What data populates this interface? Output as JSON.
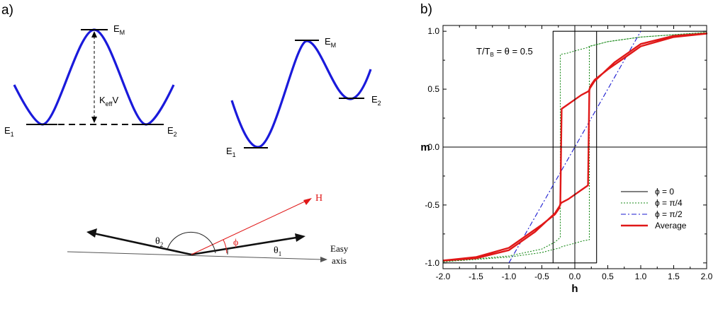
{
  "panel_a": {
    "label": "a)",
    "well_sym": {
      "top": "E",
      "top_sub": "M",
      "left": "E",
      "left_sub": "1",
      "right": "E",
      "right_sub": "2",
      "barrier": "K",
      "barrier_sub": "eff",
      "barrier_tail": "V"
    },
    "well_asym": {
      "top": "E",
      "top_sub": "M",
      "left": "E",
      "left_sub": "1",
      "right": "E",
      "right_sub": "2"
    },
    "angles": {
      "h": "H",
      "phi": "ϕ",
      "theta1": "θ",
      "theta1_sub": "1",
      "theta2": "θ",
      "theta2_sub": "2",
      "easy1": "Easy",
      "easy2": "axis"
    },
    "colors": {
      "well": "#1a1adb",
      "field": "#e01818",
      "arrow": "#111111"
    }
  },
  "panel_b": {
    "label": "b)",
    "annotation": "T/T",
    "annotation_sub": "B",
    "annotation_tail": " = θ  = 0.5"
  },
  "chart_data": {
    "type": "line",
    "xlabel": "h",
    "ylabel": "m",
    "xlim": [
      -2.0,
      2.0
    ],
    "ylim": [
      -1.05,
      1.05
    ],
    "xticks": [
      "-2.0",
      "-1.5",
      "-1.0",
      "-0.5",
      "0.0",
      "0.5",
      "1.0",
      "1.5",
      "2.0"
    ],
    "yticks": [
      "-1.0",
      "-0.5",
      "0.0",
      "0.5",
      "1.0"
    ],
    "legend_position": "bottom-right",
    "series": [
      {
        "name": "ϕ = 0",
        "color": "#000000",
        "style": "solid",
        "x": [
          -2.0,
          0.33,
          0.33,
          2.0,
          2.0,
          -0.33,
          -0.33,
          -2.0
        ],
        "y": [
          -1.0,
          -1.0,
          1.0,
          1.0,
          1.0,
          1.0,
          -1.0,
          -1.0
        ]
      },
      {
        "name": "ϕ = π/4",
        "color": "#1a8a1a",
        "style": "dotted",
        "x": [
          -2.0,
          -1.0,
          -0.5,
          -0.3,
          -0.22,
          -0.22,
          -0.12,
          0.0,
          0.2,
          0.22,
          0.22,
          0.3,
          0.5,
          1.0,
          2.0,
          2.0,
          1.0,
          0.5,
          0.3,
          0.22,
          0.22,
          0.12,
          0.0,
          -0.2,
          -0.22,
          -0.22,
          -0.3,
          -0.5,
          -1.0,
          -2.0
        ],
        "y": [
          -0.99,
          -0.94,
          -0.88,
          -0.82,
          -0.78,
          0.8,
          0.81,
          0.83,
          0.86,
          0.87,
          0.87,
          0.88,
          0.91,
          0.95,
          0.99,
          0.99,
          0.95,
          0.91,
          0.88,
          0.87,
          -0.8,
          -0.81,
          -0.83,
          -0.86,
          -0.87,
          -0.87,
          -0.88,
          -0.91,
          -0.95,
          -0.99
        ]
      },
      {
        "name": "ϕ = π/2",
        "color": "#1a1ad0",
        "style": "dashdot",
        "x": [
          -1.0,
          1.0
        ],
        "y": [
          -1.0,
          1.0
        ]
      },
      {
        "name": "Average",
        "color": "#e01818",
        "style": "solid",
        "x": [
          -2.0,
          -1.5,
          -1.0,
          -0.6,
          -0.3,
          -0.22,
          -0.2,
          -0.1,
          0.0,
          0.1,
          0.2,
          0.22,
          0.24,
          0.3,
          0.5,
          0.75,
          1.0,
          1.5,
          2.0,
          2.0,
          1.5,
          1.0,
          0.6,
          0.3,
          0.22,
          0.2,
          0.1,
          0.0,
          -0.1,
          -0.2,
          -0.22,
          -0.24,
          -0.3,
          -0.5,
          -0.75,
          -1.0,
          -1.5,
          -2.0
        ],
        "y": [
          -0.98,
          -0.96,
          -0.89,
          -0.73,
          -0.57,
          -0.5,
          0.33,
          0.37,
          0.41,
          0.45,
          0.48,
          0.49,
          0.53,
          0.58,
          0.67,
          0.77,
          0.87,
          0.95,
          0.98,
          0.98,
          0.96,
          0.89,
          0.73,
          0.57,
          0.5,
          -0.33,
          -0.37,
          -0.41,
          -0.45,
          -0.48,
          -0.49,
          -0.53,
          -0.58,
          -0.67,
          -0.77,
          -0.87,
          -0.95,
          -0.98
        ]
      }
    ]
  }
}
